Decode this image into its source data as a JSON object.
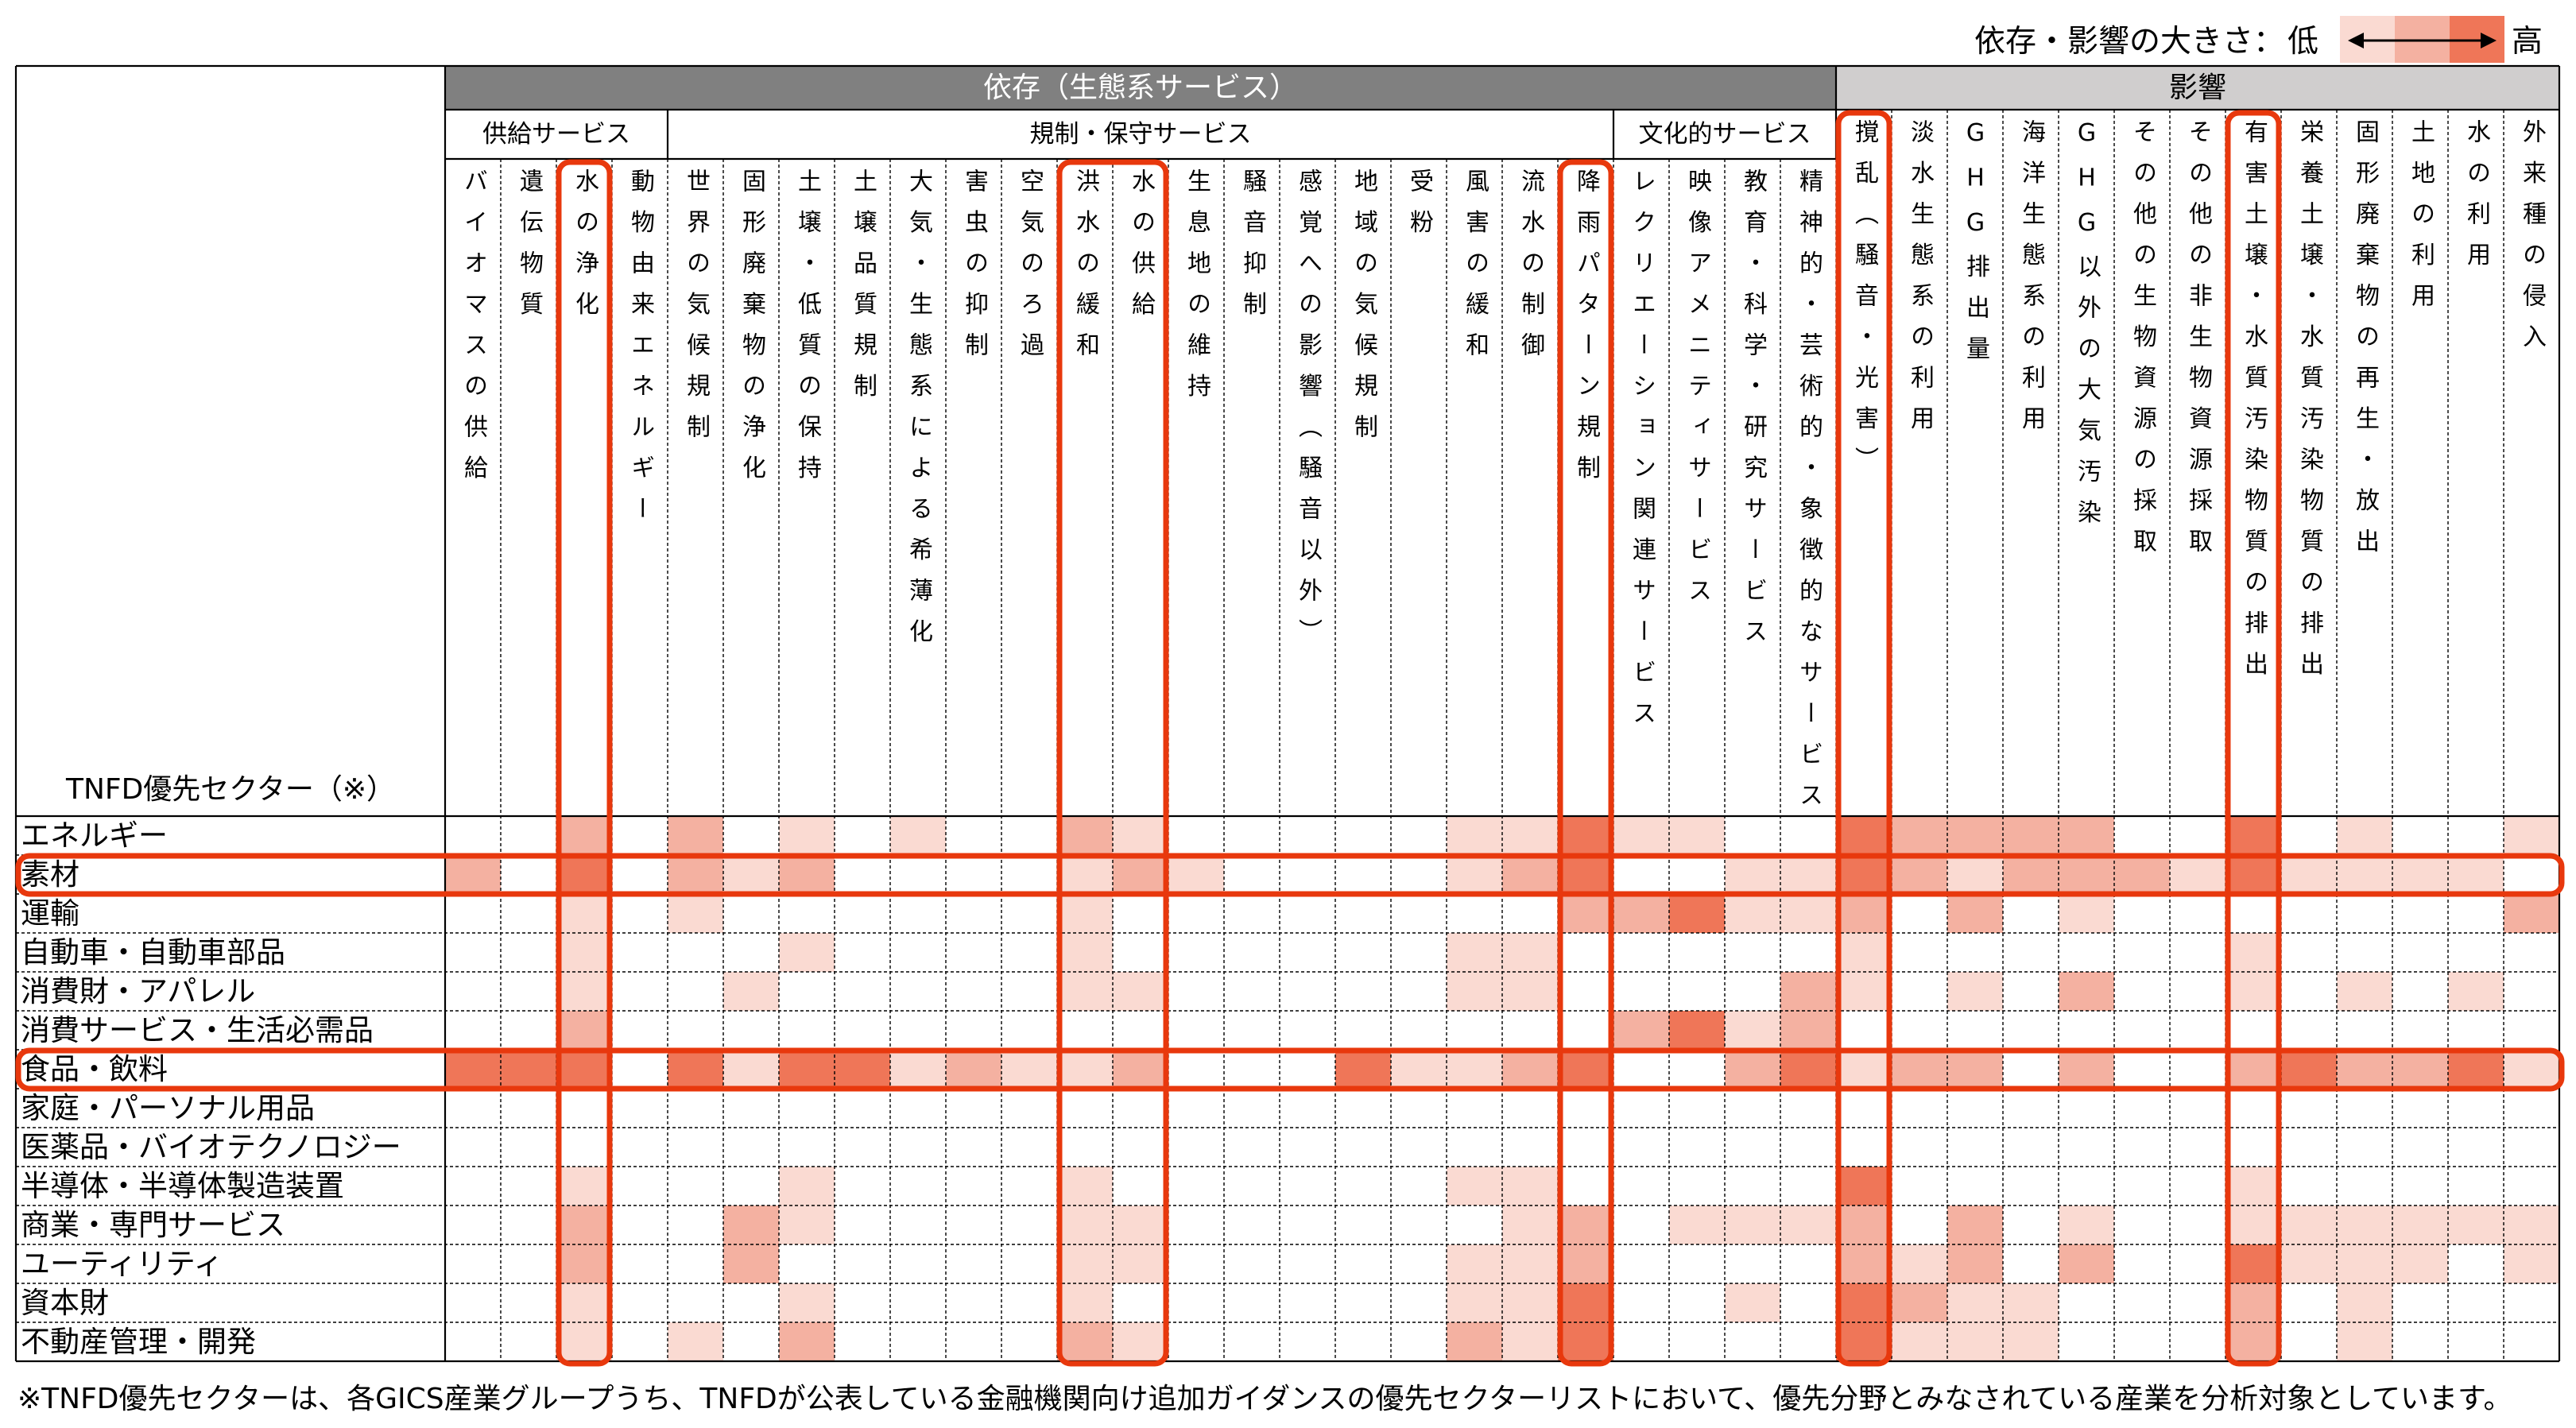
{
  "colors": {
    "dependency_header_bg": "#808080",
    "dependency_header_text": "#FFFFFF",
    "impact_header_bg": "#D0CECE",
    "highlight": "#E8380D"
  },
  "chart_data": {
    "type": "heatmap",
    "title": "",
    "corner_label": "TNFD優先セクター（※）",
    "groups": [
      {
        "name": "依存（生態系サービス）",
        "subgroups": [
          {
            "name": "供給サービス",
            "columns": [
              "バイオマスの供給",
              "遺伝物質",
              "水の浄化",
              "動物由来エネルギー"
            ]
          },
          {
            "name": "規制・保守サービス",
            "columns": [
              "世界の気候規制",
              "固形廃棄物の浄化",
              "土壌・低質の保持",
              "土壌品質規制",
              "大気・生態系による希薄化",
              "害虫の抑制",
              "空気のろ過",
              "洪水の緩和",
              "水の供給",
              "生息地の維持",
              "騒音抑制",
              "感覚への影響（騒音以外）",
              "地域の気候規制",
              "受粉",
              "風害の緩和",
              "流水の制御",
              "降雨パターン規制"
            ]
          },
          {
            "name": "文化的サービス",
            "columns": [
              "レクリエーション関連サービス",
              "映像アメニティサービス",
              "教育・科学・研究サービス",
              "精神的・芸術的・象徴的なサービス"
            ]
          }
        ]
      },
      {
        "name": "影響",
        "subgroups": [
          {
            "name": "",
            "columns": [
              "撹乱（騒音・光害）",
              "淡水生態系の利用",
              "GHG排出量",
              "海洋生態系の利用",
              "GHG以外の大気汚染",
              "その他の生物資源の採取",
              "その他の非生物資源採取",
              "有害土壌・水質汚染物質の排出",
              "栄養土壌・水質汚染物質の排出",
              "固形廃棄物の再生・放出",
              "土地の利用",
              "水の利用",
              "外来種の侵入"
            ]
          }
        ]
      }
    ],
    "rows": [
      "エネルギー",
      "素材",
      "運輸",
      "自動車・自動車部品",
      "消費財・アパレル",
      "消費サービス・生活必需品",
      "食品・飲料",
      "家庭・パーソナル用品",
      "医薬品・バイオテクノロジー",
      "半導体・半導体製造装置",
      "商業・専門サービス",
      "ユーティリティ",
      "資本財",
      "不動産管理・開発"
    ],
    "values": [
      [
        0,
        0,
        2,
        0,
        2,
        0,
        1,
        0,
        1,
        0,
        0,
        2,
        1,
        0,
        0,
        0,
        0,
        0,
        1,
        1,
        3,
        1,
        1,
        0,
        0,
        3,
        2,
        2,
        2,
        2,
        0,
        0,
        3,
        0,
        1,
        0,
        0,
        1
      ],
      [
        2,
        0,
        3,
        0,
        2,
        1,
        2,
        0,
        0,
        0,
        0,
        1,
        2,
        1,
        0,
        0,
        0,
        0,
        1,
        2,
        3,
        0,
        0,
        1,
        1,
        3,
        2,
        1,
        2,
        2,
        2,
        1,
        3,
        1,
        1,
        1,
        1,
        0
      ],
      [
        0,
        0,
        1,
        0,
        1,
        0,
        0,
        0,
        0,
        0,
        0,
        1,
        0,
        0,
        0,
        0,
        0,
        0,
        0,
        0,
        2,
        2,
        3,
        1,
        1,
        2,
        0,
        2,
        0,
        1,
        0,
        0,
        0,
        0,
        0,
        0,
        0,
        2
      ],
      [
        0,
        0,
        1,
        0,
        0,
        0,
        1,
        0,
        0,
        0,
        0,
        1,
        0,
        0,
        0,
        0,
        0,
        0,
        1,
        1,
        0,
        0,
        0,
        0,
        0,
        1,
        0,
        0,
        0,
        0,
        0,
        0,
        1,
        0,
        0,
        0,
        0,
        0
      ],
      [
        0,
        0,
        1,
        0,
        0,
        1,
        0,
        0,
        0,
        0,
        0,
        1,
        1,
        0,
        0,
        0,
        0,
        0,
        1,
        1,
        0,
        0,
        0,
        0,
        2,
        1,
        0,
        1,
        0,
        2,
        0,
        0,
        1,
        0,
        1,
        0,
        1,
        0
      ],
      [
        0,
        0,
        2,
        0,
        0,
        0,
        0,
        0,
        0,
        0,
        0,
        0,
        0,
        0,
        0,
        0,
        0,
        0,
        0,
        0,
        0,
        2,
        3,
        1,
        2,
        0,
        0,
        0,
        0,
        0,
        0,
        0,
        0,
        0,
        0,
        0,
        0,
        0
      ],
      [
        3,
        3,
        3,
        0,
        3,
        1,
        3,
        3,
        1,
        2,
        1,
        1,
        2,
        0,
        0,
        0,
        3,
        1,
        1,
        2,
        3,
        0,
        0,
        2,
        3,
        1,
        2,
        2,
        0,
        2,
        0,
        0,
        2,
        3,
        2,
        2,
        3,
        1
      ],
      [
        0,
        0,
        0,
        0,
        0,
        0,
        0,
        0,
        0,
        0,
        0,
        0,
        0,
        0,
        0,
        0,
        0,
        0,
        0,
        0,
        0,
        0,
        0,
        0,
        0,
        0,
        0,
        0,
        0,
        0,
        0,
        0,
        0,
        0,
        0,
        0,
        0,
        0
      ],
      [
        0,
        0,
        0,
        0,
        0,
        0,
        0,
        0,
        0,
        0,
        0,
        0,
        0,
        0,
        0,
        0,
        0,
        0,
        0,
        0,
        0,
        0,
        0,
        0,
        0,
        0,
        0,
        0,
        0,
        0,
        0,
        0,
        0,
        0,
        0,
        0,
        0,
        0
      ],
      [
        0,
        0,
        1,
        0,
        0,
        0,
        1,
        0,
        0,
        0,
        0,
        1,
        0,
        0,
        0,
        0,
        0,
        0,
        1,
        1,
        0,
        0,
        0,
        0,
        0,
        3,
        0,
        0,
        0,
        0,
        0,
        0,
        1,
        0,
        0,
        0,
        0,
        0
      ],
      [
        0,
        0,
        2,
        0,
        0,
        2,
        1,
        0,
        0,
        0,
        0,
        1,
        1,
        0,
        0,
        0,
        0,
        0,
        0,
        1,
        2,
        0,
        1,
        1,
        1,
        2,
        0,
        2,
        0,
        1,
        0,
        0,
        1,
        1,
        1,
        1,
        1,
        1
      ],
      [
        0,
        0,
        2,
        0,
        0,
        2,
        0,
        0,
        0,
        0,
        0,
        1,
        1,
        0,
        0,
        0,
        0,
        0,
        1,
        1,
        2,
        0,
        0,
        0,
        0,
        2,
        1,
        2,
        0,
        2,
        0,
        0,
        3,
        1,
        1,
        1,
        0,
        1
      ],
      [
        0,
        0,
        1,
        0,
        0,
        0,
        1,
        0,
        0,
        0,
        0,
        1,
        0,
        0,
        0,
        0,
        0,
        0,
        1,
        1,
        3,
        0,
        0,
        1,
        0,
        3,
        2,
        1,
        1,
        0,
        0,
        0,
        2,
        0,
        1,
        0,
        0,
        0
      ],
      [
        0,
        0,
        1,
        0,
        1,
        0,
        2,
        0,
        0,
        0,
        0,
        2,
        1,
        0,
        0,
        0,
        0,
        0,
        2,
        1,
        3,
        0,
        0,
        0,
        0,
        3,
        1,
        1,
        1,
        0,
        0,
        0,
        2,
        0,
        1,
        0,
        0,
        0
      ]
    ],
    "value_scale": {
      "min": 0,
      "max": 3,
      "legend_label": "依存・影響の大きさ：",
      "low_label": "低",
      "high_label": "高",
      "colors": [
        "#FFFFFF",
        "#FADAD2",
        "#F4B1A1",
        "#EF7658"
      ]
    },
    "highlighted_column_sets": [
      [
        "水の浄化"
      ],
      [
        "洪水の緩和",
        "水の供給"
      ],
      [
        "降雨パターン規制"
      ],
      [
        "撹乱（騒音・光害）"
      ],
      [
        "有害土壌・水質汚染物質の排出"
      ]
    ],
    "highlighted_rows": [
      "素材",
      "食品・飲料"
    ],
    "legend_position": "top-right",
    "footnote": "※TNFD優先セクターは、各GICS産業グループうち、TNFDが公表している金融機関向け追加ガイダンスの優先セクターリストにおいて、優先分野とみなされている産業を分析対象としています。"
  }
}
